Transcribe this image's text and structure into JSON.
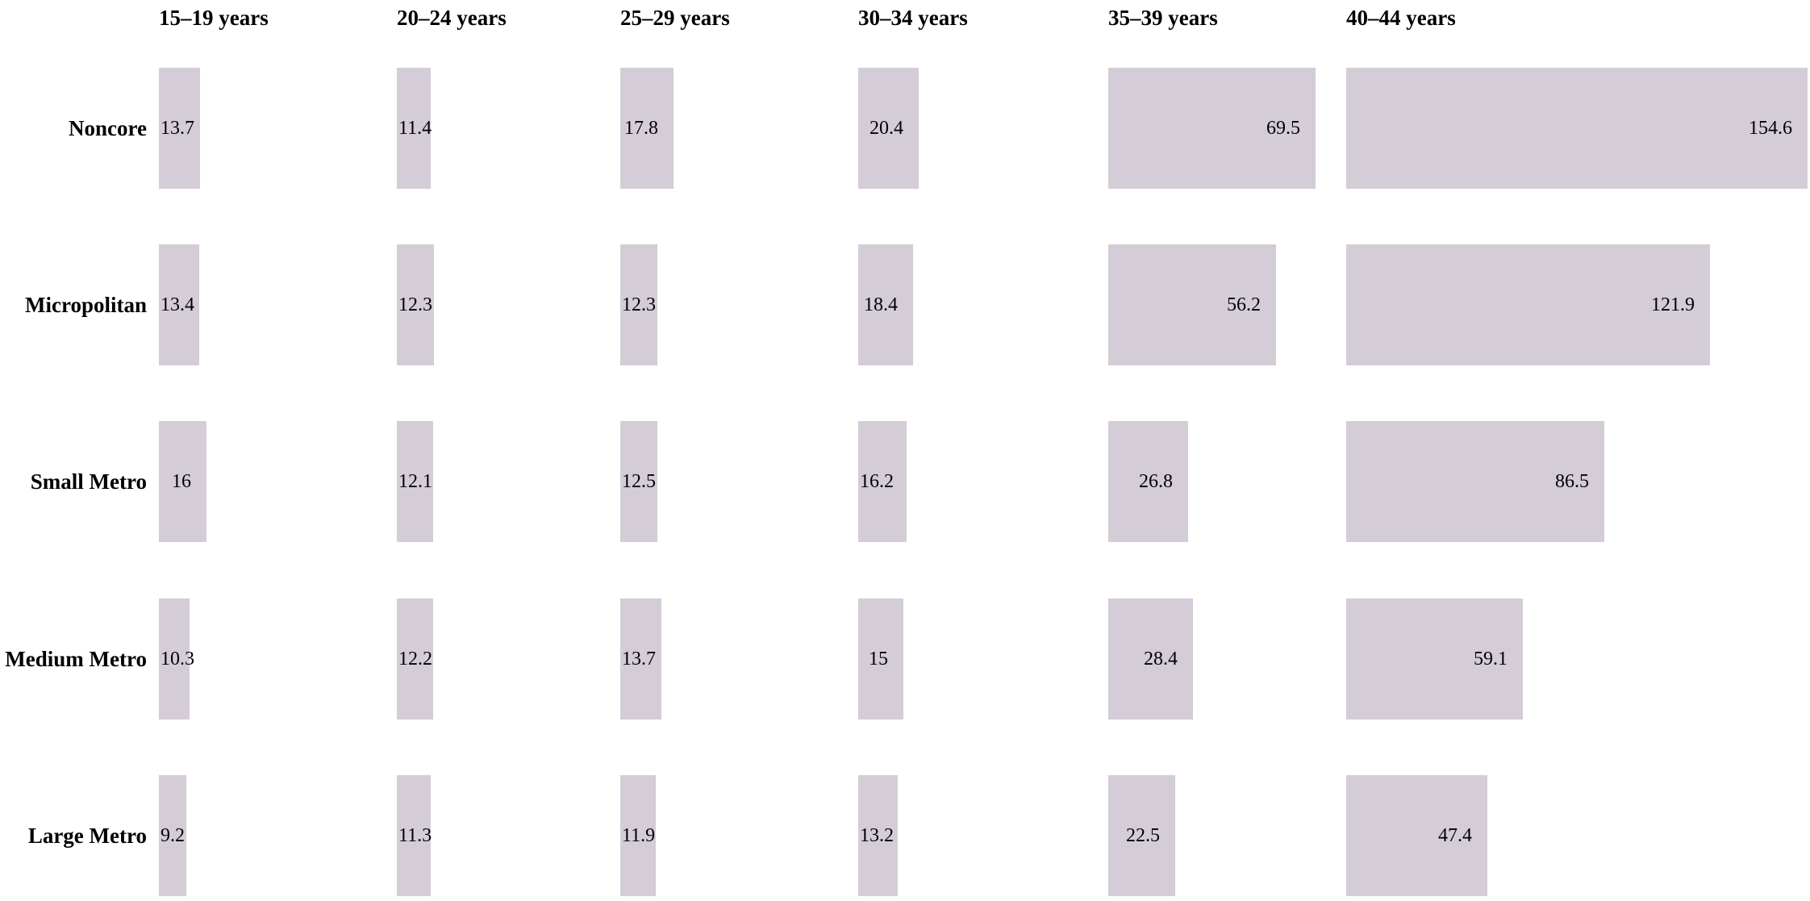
{
  "chart_data": {
    "type": "bar",
    "orientation": "horizontal",
    "title": "",
    "facet_columns": [
      "15–19 years",
      "20–24 years",
      "25–29 years",
      "30–34 years",
      "35–39 years",
      "40–44 years"
    ],
    "categories": [
      "Noncore",
      "Micropolitan",
      "Small Metro",
      "Medium Metro",
      "Large Metro"
    ],
    "series": [
      {
        "name": "15–19 years",
        "values": [
          13.7,
          13.4,
          16,
          10.3,
          9.2
        ]
      },
      {
        "name": "20–24 years",
        "values": [
          11.4,
          12.3,
          12.1,
          12.2,
          11.3
        ]
      },
      {
        "name": "25–29 years",
        "values": [
          17.8,
          12.3,
          12.5,
          13.7,
          11.9
        ]
      },
      {
        "name": "30–34 years",
        "values": [
          20.4,
          18.4,
          16.2,
          15,
          13.2
        ]
      },
      {
        "name": "35–39 years",
        "values": [
          69.5,
          56.2,
          26.8,
          28.4,
          22.5
        ]
      },
      {
        "name": "40–44 years",
        "values": [
          154.6,
          121.9,
          86.5,
          59.1,
          47.4
        ]
      }
    ],
    "value_labels_shown": true,
    "bar_color": "#d4ccd6",
    "text_color": "#000000",
    "background_color": "#ffffff",
    "legend": "none",
    "gridlines": false,
    "axes_shown": false
  }
}
